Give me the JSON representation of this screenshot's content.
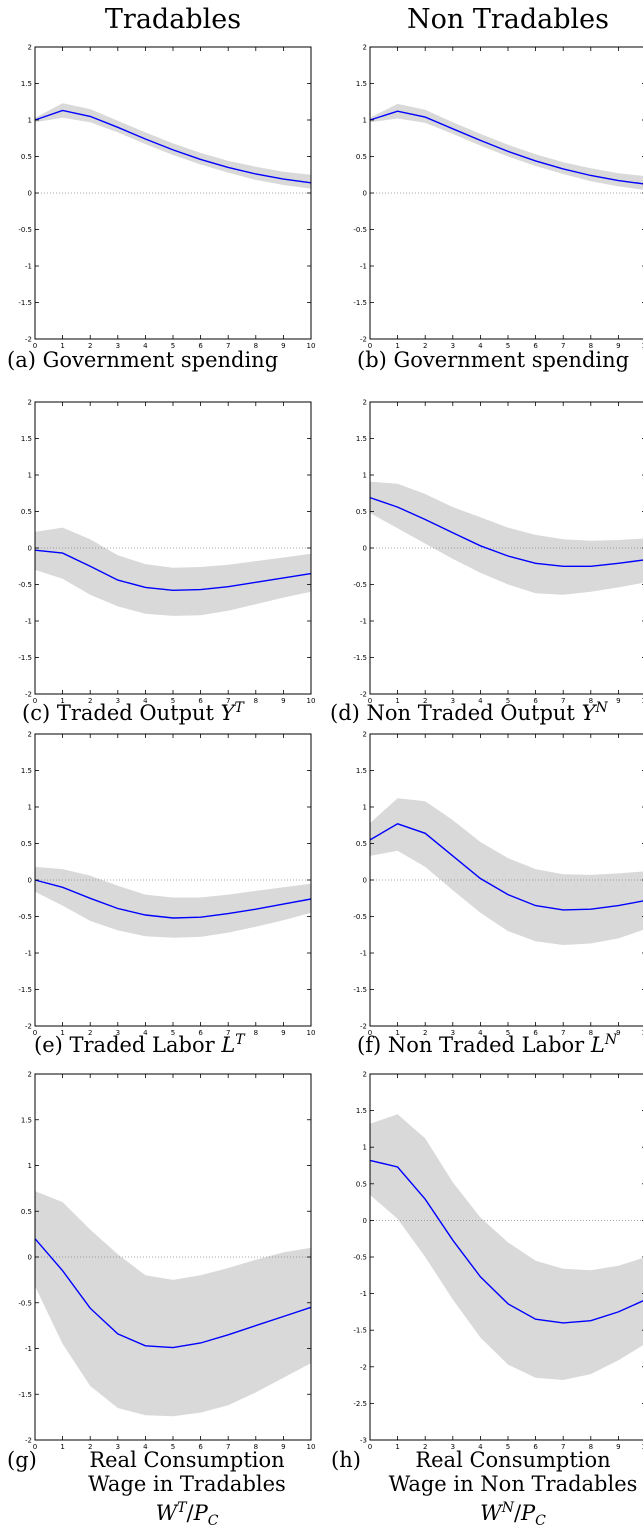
{
  "column_titles": [
    "Tradables",
    "Non Tradables"
  ],
  "colors": {
    "line": "#0000ff",
    "band": "#d9d9d9",
    "zero": "#888888"
  },
  "panels": [
    {
      "label": "(a)",
      "caption": "Government spending"
    },
    {
      "label": "(b)",
      "caption": "Government spending"
    },
    {
      "label": "(c)",
      "caption": "Traded Output",
      "math": "Y",
      "sup": "T"
    },
    {
      "label": "(d)",
      "caption": "Non Traded Output",
      "math": "Y",
      "sup": "N"
    },
    {
      "label": "(e)",
      "caption": "Traded Labor",
      "math": "L",
      "sup": "T"
    },
    {
      "label": "(f)",
      "caption": "Non Traded Labor",
      "math": "L",
      "sup": "N"
    },
    {
      "label": "(g)",
      "lines": [
        "Real Consumption",
        "Wage in Tradables"
      ],
      "math": "W",
      "sup": "T",
      "sub": "C"
    },
    {
      "label": "(h)",
      "lines": [
        "Real Consumption",
        "Wage in Non Tradables"
      ],
      "math": "W",
      "sup": "N",
      "sub": "C"
    }
  ],
  "chart_data": [
    {
      "type": "line",
      "x": [
        0,
        1,
        2,
        3,
        4,
        5,
        6,
        7,
        8,
        9,
        10
      ],
      "xlim": [
        0,
        10
      ],
      "ylim": [
        -2,
        2
      ],
      "yticks": [
        -2,
        -1.5,
        -1,
        -0.5,
        0,
        0.5,
        1,
        1.5,
        2
      ],
      "zero_line": true,
      "series": [
        {
          "values": [
            1.0,
            1.13,
            1.05,
            0.9,
            0.74,
            0.59,
            0.46,
            0.35,
            0.26,
            0.19,
            0.14
          ]
        }
      ],
      "band": {
        "lower": [
          0.97,
          1.03,
          0.97,
          0.83,
          0.67,
          0.52,
          0.39,
          0.28,
          0.18,
          0.11,
          0.06
        ],
        "upper": [
          1.03,
          1.23,
          1.15,
          0.99,
          0.83,
          0.68,
          0.55,
          0.44,
          0.36,
          0.29,
          0.25
        ]
      }
    },
    {
      "type": "line",
      "x": [
        0,
        1,
        2,
        3,
        4,
        5,
        6,
        7,
        8,
        9,
        10
      ],
      "xlim": [
        0,
        10
      ],
      "ylim": [
        -2,
        2
      ],
      "yticks": [
        -2,
        -1.5,
        -1,
        -0.5,
        0,
        0.5,
        1,
        1.5,
        2
      ],
      "zero_line": true,
      "series": [
        {
          "values": [
            1.0,
            1.12,
            1.04,
            0.88,
            0.72,
            0.57,
            0.44,
            0.33,
            0.24,
            0.17,
            0.12
          ]
        }
      ],
      "band": {
        "lower": [
          0.97,
          1.02,
          0.96,
          0.81,
          0.65,
          0.5,
          0.37,
          0.26,
          0.16,
          0.09,
          0.04
        ],
        "upper": [
          1.03,
          1.22,
          1.14,
          0.97,
          0.81,
          0.66,
          0.53,
          0.42,
          0.34,
          0.27,
          0.23
        ]
      }
    },
    {
      "type": "line",
      "x": [
        0,
        1,
        2,
        3,
        4,
        5,
        6,
        7,
        8,
        9,
        10
      ],
      "xlim": [
        0,
        10
      ],
      "ylim": [
        -2,
        2
      ],
      "yticks": [
        -2,
        -1.5,
        -1,
        -0.5,
        0,
        0.5,
        1,
        1.5,
        2
      ],
      "zero_line": true,
      "series": [
        {
          "values": [
            -0.03,
            -0.07,
            -0.25,
            -0.44,
            -0.54,
            -0.58,
            -0.57,
            -0.53,
            -0.47,
            -0.41,
            -0.35
          ]
        }
      ],
      "band": {
        "lower": [
          -0.3,
          -0.42,
          -0.64,
          -0.8,
          -0.9,
          -0.93,
          -0.92,
          -0.86,
          -0.77,
          -0.68,
          -0.6
        ],
        "upper": [
          0.22,
          0.28,
          0.12,
          -0.1,
          -0.22,
          -0.27,
          -0.26,
          -0.23,
          -0.18,
          -0.13,
          -0.08
        ]
      }
    },
    {
      "type": "line",
      "x": [
        0,
        1,
        2,
        3,
        4,
        5,
        6,
        7,
        8,
        9,
        10
      ],
      "xlim": [
        0,
        10
      ],
      "ylim": [
        -2,
        2
      ],
      "yticks": [
        -2,
        -1.5,
        -1,
        -0.5,
        0,
        0.5,
        1,
        1.5,
        2
      ],
      "zero_line": true,
      "series": [
        {
          "values": [
            0.69,
            0.56,
            0.39,
            0.21,
            0.03,
            -0.11,
            -0.21,
            -0.25,
            -0.25,
            -0.21,
            -0.16
          ]
        }
      ],
      "band": {
        "lower": [
          0.48,
          0.27,
          0.06,
          -0.15,
          -0.34,
          -0.5,
          -0.62,
          -0.64,
          -0.6,
          -0.54,
          -0.47
        ],
        "upper": [
          0.91,
          0.88,
          0.74,
          0.56,
          0.42,
          0.28,
          0.18,
          0.12,
          0.1,
          0.11,
          0.13
        ]
      }
    },
    {
      "type": "line",
      "x": [
        0,
        1,
        2,
        3,
        4,
        5,
        6,
        7,
        8,
        9,
        10
      ],
      "xlim": [
        0,
        10
      ],
      "ylim": [
        -2,
        2
      ],
      "yticks": [
        -2,
        -1.5,
        -1,
        -0.5,
        0,
        0.5,
        1,
        1.5,
        2
      ],
      "zero_line": true,
      "series": [
        {
          "values": [
            0.0,
            -0.1,
            -0.25,
            -0.39,
            -0.48,
            -0.52,
            -0.51,
            -0.46,
            -0.4,
            -0.33,
            -0.26
          ]
        }
      ],
      "band": {
        "lower": [
          -0.16,
          -0.35,
          -0.56,
          -0.69,
          -0.77,
          -0.79,
          -0.78,
          -0.72,
          -0.64,
          -0.55,
          -0.45
        ],
        "upper": [
          0.18,
          0.15,
          0.06,
          -0.08,
          -0.2,
          -0.24,
          -0.24,
          -0.2,
          -0.15,
          -0.1,
          -0.05
        ]
      }
    },
    {
      "type": "line",
      "x": [
        0,
        1,
        2,
        3,
        4,
        5,
        6,
        7,
        8,
        9,
        10
      ],
      "xlim": [
        0,
        10
      ],
      "ylim": [
        -2,
        2
      ],
      "yticks": [
        -2,
        -1.5,
        -1,
        -0.5,
        0,
        0.5,
        1,
        1.5,
        2
      ],
      "zero_line": true,
      "series": [
        {
          "values": [
            0.55,
            0.77,
            0.64,
            0.33,
            0.02,
            -0.2,
            -0.35,
            -0.41,
            -0.4,
            -0.35,
            -0.28
          ]
        }
      ],
      "band": {
        "lower": [
          0.33,
          0.4,
          0.18,
          -0.14,
          -0.45,
          -0.7,
          -0.84,
          -0.89,
          -0.87,
          -0.8,
          -0.67
        ],
        "upper": [
          0.78,
          1.12,
          1.08,
          0.82,
          0.52,
          0.3,
          0.15,
          0.08,
          0.07,
          0.09,
          0.12
        ]
      }
    },
    {
      "type": "line",
      "x": [
        0,
        1,
        2,
        3,
        4,
        5,
        6,
        7,
        8,
        9,
        10
      ],
      "xlim": [
        0,
        10
      ],
      "ylim": [
        -2,
        2
      ],
      "yticks": [
        -2,
        -1.5,
        -1,
        -0.5,
        0,
        0.5,
        1,
        1.5,
        2
      ],
      "zero_line": true,
      "series": [
        {
          "values": [
            0.2,
            -0.15,
            -0.56,
            -0.84,
            -0.97,
            -0.99,
            -0.94,
            -0.85,
            -0.75,
            -0.65,
            -0.55
          ]
        }
      ],
      "band": {
        "lower": [
          -0.32,
          -0.95,
          -1.41,
          -1.65,
          -1.73,
          -1.74,
          -1.7,
          -1.62,
          -1.48,
          -1.32,
          -1.16
        ],
        "upper": [
          0.72,
          0.6,
          0.3,
          0.03,
          -0.2,
          -0.25,
          -0.2,
          -0.12,
          -0.03,
          0.05,
          0.1
        ]
      }
    },
    {
      "type": "line",
      "x": [
        0,
        1,
        2,
        3,
        4,
        5,
        6,
        7,
        8,
        9,
        10
      ],
      "xlim": [
        0,
        10
      ],
      "ylim": [
        -3,
        2
      ],
      "yticks": [
        -3,
        -2.5,
        -2,
        -1.5,
        -1,
        -0.5,
        0,
        0.5,
        1,
        1.5,
        2
      ],
      "zero_line": true,
      "series": [
        {
          "values": [
            0.82,
            0.73,
            0.29,
            -0.27,
            -0.77,
            -1.14,
            -1.35,
            -1.4,
            -1.37,
            -1.25,
            -1.08
          ]
        }
      ],
      "band": {
        "lower": [
          0.35,
          0.02,
          -0.5,
          -1.08,
          -1.6,
          -1.97,
          -2.15,
          -2.18,
          -2.1,
          -1.91,
          -1.68
        ],
        "upper": [
          1.32,
          1.45,
          1.12,
          0.52,
          0.04,
          -0.3,
          -0.55,
          -0.66,
          -0.68,
          -0.62,
          -0.5
        ]
      }
    }
  ]
}
